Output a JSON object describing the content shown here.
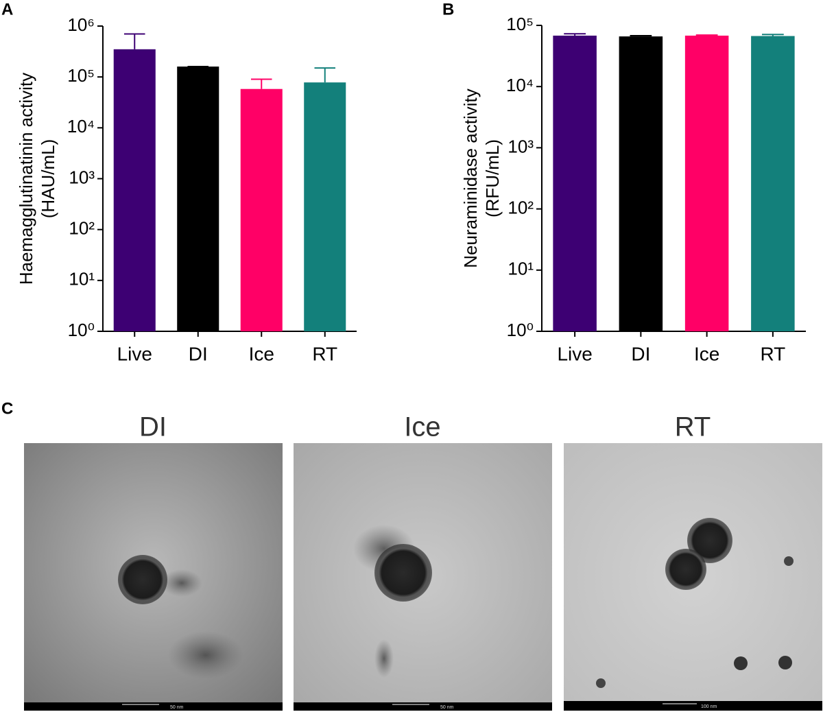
{
  "chart_data": [
    {
      "type": "bar",
      "panel": "A",
      "log_scale": true,
      "ylabel": [
        "Haemagglutinatinin activity",
        "(HAU/mL)"
      ],
      "categories": [
        "Live",
        "DI",
        "Ice",
        "RT"
      ],
      "values": [
        350000,
        160000,
        58000,
        78000
      ],
      "errors": [
        350000,
        0,
        32000,
        72000
      ],
      "colors": [
        "#3d0073",
        "#000000",
        "#ff0066",
        "#13807b"
      ],
      "ylim": [
        1,
        1000000
      ],
      "yticks": [
        {
          "value": 1,
          "label": "10⁰"
        },
        {
          "value": 10,
          "label": "10¹"
        },
        {
          "value": 100,
          "label": "10²"
        },
        {
          "value": 1000,
          "label": "10³"
        },
        {
          "value": 10000,
          "label": "10⁴"
        },
        {
          "value": 100000,
          "label": "10⁵"
        },
        {
          "value": 1000000,
          "label": "10⁶"
        }
      ]
    },
    {
      "type": "bar",
      "panel": "B",
      "log_scale": true,
      "ylabel": [
        "Neuraminidase activity",
        "(RFU/mL)"
      ],
      "categories": [
        "Live",
        "DI",
        "Ice",
        "RT"
      ],
      "values": [
        68000,
        66000,
        68000,
        67000
      ],
      "errors": [
        5000,
        2000,
        1500,
        4000
      ],
      "colors": [
        "#3d0073",
        "#000000",
        "#ff0066",
        "#13807b"
      ],
      "ylim": [
        1,
        100000
      ],
      "yticks": [
        {
          "value": 1,
          "label": "10⁰"
        },
        {
          "value": 10,
          "label": "10¹"
        },
        {
          "value": 100,
          "label": "10²"
        },
        {
          "value": 1000,
          "label": "10³"
        },
        {
          "value": 10000,
          "label": "10⁴"
        },
        {
          "value": 100000,
          "label": "10⁵"
        }
      ]
    }
  ],
  "micrographs": {
    "panel": "C",
    "images": [
      {
        "title": "DI",
        "scale_bar": "50 nm"
      },
      {
        "title": "Ice",
        "scale_bar": "50 nm"
      },
      {
        "title": "RT",
        "scale_bar": "100 nm"
      }
    ]
  }
}
